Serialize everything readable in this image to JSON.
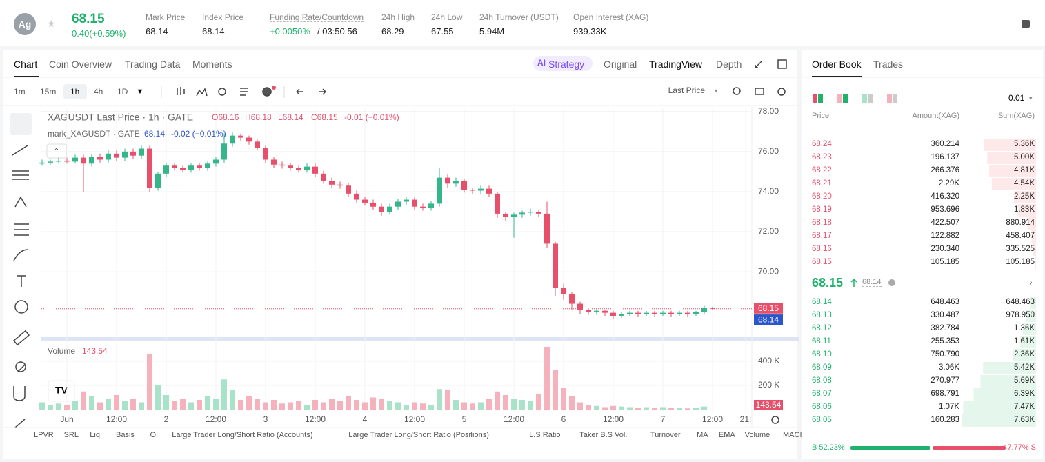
{
  "header": {
    "symbol": "Ag",
    "price": "68.15",
    "change": "0.40(+0.59%)",
    "stats": [
      {
        "label": "Mark Price",
        "value": "68.14"
      },
      {
        "label": "Index Price",
        "value": "68.14"
      },
      {
        "label": "Funding Rate/Countdown",
        "value": "+0.0050%",
        "extra": "/ 03:50:56"
      },
      {
        "label": "24h High",
        "value": "68.29"
      },
      {
        "label": "24h Low",
        "value": "67.55"
      },
      {
        "label": "24h Turnover (USDT)",
        "value": "5.94M"
      },
      {
        "label": "Open Interest (XAG)",
        "value": "939.33K"
      }
    ]
  },
  "tabs": [
    "Chart",
    "Coin Overview",
    "Trading Data",
    "Moments"
  ],
  "views": [
    "Strategy",
    "Original",
    "TradingView",
    "Depth"
  ],
  "intervals": [
    "1m",
    "15m",
    "1h",
    "4h",
    "1D"
  ],
  "price_source": "Last Price",
  "indicators": [
    "LPVR",
    "SRL",
    "Liq",
    "Basis",
    "OI",
    "Large Trader Long/Short Ratio (Accounts)",
    "Large Trader Long/Short Ratio (Positions)",
    "L.S Ratio",
    "Taker B.S Vol.",
    "Turnover",
    "MA",
    "EMA",
    "Volume",
    "MACI"
  ],
  "chart_data": {
    "type": "candlestick",
    "title": "XAGUSDT Last Price · 1h · GATE",
    "ohlc_labels": [
      "O68.16",
      "H68.18",
      "L68.14",
      "C68.15",
      "-0.01 (−0.01%)"
    ],
    "mark_title": "mark_XAGUSDT · GATE",
    "mark_labels": [
      "68.14",
      "-0.02 (−0.01%)"
    ],
    "up_color": "#35b58a",
    "down_color": "#e6506b",
    "categories": [
      null,
      null,
      null,
      "Jun",
      null,
      null,
      null,
      null,
      null,
      "12:00",
      null,
      null,
      null,
      null,
      null,
      "2",
      null,
      null,
      null,
      null,
      null,
      "12:00",
      null,
      null,
      null,
      null,
      null,
      "3",
      null,
      null,
      null,
      null,
      null,
      "12:00",
      null,
      null,
      null,
      null,
      null,
      "4",
      null,
      null,
      null,
      null,
      null,
      "12:00",
      null,
      null,
      null,
      null,
      null,
      "5",
      null,
      null,
      null,
      null,
      null,
      "12:00",
      null,
      null,
      null,
      null,
      null,
      "6",
      null,
      null,
      null,
      null,
      null,
      "12:00",
      null,
      null,
      null,
      null,
      null,
      "7",
      null,
      null,
      null,
      null,
      null,
      "12:00",
      null,
      null,
      null,
      "21:"
    ],
    "open": [
      75.4,
      75.45,
      75.5,
      75.55,
      75.5,
      75.7,
      75.4,
      75.75,
      75.6,
      75.9,
      75.7,
      76.0,
      75.8,
      76.15,
      74.2,
      74.9,
      75.3,
      75.2,
      75.1,
      75.3,
      75.2,
      75.4,
      75.6,
      76.4,
      76.8,
      76.7,
      76.5,
      76.2,
      75.6,
      75.35,
      75.3,
      75.2,
      75.1,
      75.25,
      74.9,
      74.55,
      74.35,
      74.3,
      73.9,
      73.6,
      73.45,
      73.25,
      73.0,
      73.25,
      73.5,
      73.6,
      73.25,
      73.2,
      73.4,
      74.7,
      74.4,
      74.55,
      74.1,
      74.05,
      74.15,
      73.9,
      72.9,
      72.75,
      72.85,
      72.95,
      73.0,
      72.9,
      71.4,
      69.2,
      68.9,
      68.4,
      68.1,
      68.0,
      68.05,
      67.95,
      67.8,
      67.9,
      67.95,
      67.9,
      67.95,
      67.9,
      67.95,
      67.9,
      67.95,
      67.9,
      68.0,
      68.2,
      null,
      null,
      null,
      null
    ],
    "high": [
      75.6,
      75.6,
      75.7,
      75.7,
      75.85,
      75.85,
      75.9,
      75.9,
      76.05,
      76.05,
      76.15,
      76.15,
      76.3,
      76.3,
      75.0,
      75.45,
      75.4,
      75.3,
      75.4,
      75.45,
      75.5,
      75.75,
      76.9,
      76.95,
      76.9,
      76.8,
      76.6,
      76.3,
      75.75,
      75.5,
      75.45,
      75.3,
      75.4,
      75.4,
      75.05,
      74.7,
      74.5,
      74.45,
      74.05,
      73.75,
      73.6,
      73.4,
      73.4,
      73.65,
      73.75,
      73.75,
      73.4,
      73.55,
      75.2,
      74.85,
      74.7,
      74.65,
      74.2,
      74.3,
      74.3,
      74.0,
      73.0,
      72.95,
      73.05,
      73.15,
      73.1,
      73.5,
      71.5,
      69.4,
      69.0,
      68.5,
      68.2,
      68.15,
      68.1,
      68.05,
      68.0,
      68.05,
      68.05,
      68.05,
      68.05,
      68.05,
      68.05,
      68.05,
      68.05,
      68.05,
      68.3,
      68.25,
      null,
      null,
      null,
      null
    ],
    "low": [
      75.3,
      75.35,
      75.4,
      75.4,
      75.4,
      74.0,
      75.25,
      75.45,
      75.45,
      75.55,
      75.55,
      75.65,
      75.65,
      74.0,
      74.05,
      74.75,
      75.05,
      74.95,
      74.95,
      75.05,
      75.05,
      75.25,
      75.45,
      76.25,
      76.55,
      76.35,
      76.05,
      75.45,
      75.2,
      75.15,
      75.05,
      74.95,
      74.95,
      74.75,
      74.4,
      74.2,
      74.15,
      73.75,
      73.45,
      73.3,
      73.1,
      72.8,
      72.85,
      73.1,
      73.35,
      73.1,
      73.05,
      73.05,
      73.25,
      74.2,
      74.25,
      73.95,
      73.9,
      73.9,
      73.75,
      72.7,
      72.55,
      71.7,
      72.7,
      72.8,
      72.75,
      71.2,
      68.8,
      68.6,
      68.1,
      67.9,
      67.85,
      67.85,
      67.8,
      67.65,
      67.7,
      67.8,
      67.75,
      67.8,
      67.75,
      67.8,
      67.75,
      67.8,
      67.75,
      67.8,
      67.9,
      68.1,
      null,
      null,
      null,
      null
    ],
    "close": [
      75.45,
      75.5,
      75.55,
      75.5,
      75.7,
      75.4,
      75.75,
      75.6,
      75.9,
      75.7,
      76.0,
      75.8,
      76.15,
      74.2,
      74.9,
      75.3,
      75.2,
      75.1,
      75.3,
      75.2,
      75.4,
      75.6,
      76.4,
      76.8,
      76.7,
      76.5,
      76.2,
      75.6,
      75.35,
      75.3,
      75.2,
      75.1,
      75.25,
      74.9,
      74.55,
      74.35,
      74.3,
      73.9,
      73.6,
      73.45,
      73.25,
      73.0,
      73.25,
      73.5,
      73.6,
      73.25,
      73.2,
      73.4,
      74.7,
      74.4,
      74.55,
      74.1,
      74.05,
      74.15,
      73.9,
      72.9,
      72.75,
      72.85,
      72.95,
      73.0,
      72.9,
      71.4,
      69.2,
      68.9,
      68.4,
      68.1,
      68.0,
      68.05,
      67.95,
      67.8,
      67.9,
      67.95,
      67.9,
      67.95,
      67.9,
      67.95,
      67.9,
      67.95,
      67.9,
      68.0,
      68.2,
      68.15,
      null,
      null,
      null,
      null
    ],
    "ylim": [
      66.8,
      78.2
    ],
    "yticks": [
      {
        "value": 70,
        "label": "70.00"
      },
      {
        "value": 72,
        "label": "72.00"
      },
      {
        "value": 74,
        "label": "74.00"
      },
      {
        "value": 76,
        "label": "76.00"
      },
      {
        "value": 78,
        "label": "78.00"
      }
    ],
    "last_price": {
      "value": 68.15,
      "label": "68.15"
    },
    "mark_price": {
      "value": 68.14,
      "label": "68.14"
    },
    "volume": {
      "title": "Volume",
      "values": [
        60000,
        40000,
        50000,
        35000,
        70000,
        150000,
        110000,
        60000,
        90000,
        120000,
        70000,
        90000,
        60000,
        460000,
        200000,
        120000,
        70000,
        90000,
        60000,
        80000,
        110000,
        90000,
        250000,
        160000,
        80000,
        110000,
        90000,
        60000,
        80000,
        50000,
        60000,
        70000,
        40000,
        80000,
        60000,
        90000,
        70000,
        110000,
        80000,
        60000,
        100000,
        90000,
        70000,
        60000,
        40000,
        60000,
        50000,
        40000,
        170000,
        160000,
        80000,
        60000,
        50000,
        60000,
        90000,
        150000,
        120000,
        90000,
        80000,
        70000,
        130000,
        520000,
        330000,
        180000,
        110000,
        60000,
        40000,
        30000,
        20000,
        30000,
        25000,
        20000,
        15000,
        20000,
        15000,
        20000,
        15000,
        15000,
        10000,
        15000,
        25000,
        143.54,
        null,
        null,
        null,
        null
      ],
      "ylim": [
        0,
        537000
      ],
      "yticks": [
        {
          "value": 200000,
          "label": "200 K"
        },
        {
          "value": 400000,
          "label": "400 K"
        }
      ]
    }
  },
  "order_book": {
    "tabs": [
      "Order Book",
      "Trades"
    ],
    "precision": "0.01",
    "headers": [
      "Price",
      "Amount(XAG)",
      "Sum(XAG)"
    ],
    "asks": [
      {
        "price": "68.24",
        "amount": "360.214",
        "sum": {
          "value": 5360,
          "label": "5.36K"
        }
      },
      {
        "price": "68.23",
        "amount": "196.137",
        "sum": {
          "value": 5000,
          "label": "5.00K"
        }
      },
      {
        "price": "68.22",
        "amount": "266.376",
        "sum": {
          "value": 4810,
          "label": "4.81K"
        }
      },
      {
        "price": "68.21",
        "amount": "2.29K",
        "sum": {
          "value": 4540,
          "label": "4.54K"
        }
      },
      {
        "price": "68.20",
        "amount": "416.320",
        "sum": {
          "value": 2250,
          "label": "2.25K"
        }
      },
      {
        "price": "68.19",
        "amount": "953.696",
        "sum": {
          "value": 1830,
          "label": "1.83K"
        }
      },
      {
        "price": "68.18",
        "amount": "422.507",
        "sum": 880.914
      },
      {
        "price": "68.17",
        "amount": "122.882",
        "sum": 458.407
      },
      {
        "price": "68.16",
        "amount": "230.340",
        "sum": 335.525
      },
      {
        "price": "68.15",
        "amount": "105.185",
        "sum": 105.185
      }
    ],
    "mid": {
      "price": "68.15",
      "mark": "68.14"
    },
    "bids": [
      {
        "price": "68.14",
        "amount": "648.463",
        "sum": 648.463
      },
      {
        "price": "68.13",
        "amount": "330.487",
        "sum": {
          "value": 978.95,
          "label": "978.950"
        }
      },
      {
        "price": "68.12",
        "amount": "382.784",
        "sum": {
          "value": 1360,
          "label": "1.36K"
        }
      },
      {
        "price": "68.11",
        "amount": "255.353",
        "sum": {
          "value": 1610,
          "label": "1.61K"
        }
      },
      {
        "price": "68.10",
        "amount": "750.790",
        "sum": {
          "value": 2360,
          "label": "2.36K"
        }
      },
      {
        "price": "68.09",
        "amount": "3.06K",
        "sum": {
          "value": 5420,
          "label": "5.42K"
        }
      },
      {
        "price": "68.08",
        "amount": "270.977",
        "sum": {
          "value": 5690,
          "label": "5.69K"
        }
      },
      {
        "price": "68.07",
        "amount": "698.791",
        "sum": {
          "value": 6390,
          "label": "6.39K"
        }
      },
      {
        "price": "68.06",
        "amount": "1.07K",
        "sum": {
          "value": 7470,
          "label": "7.47K"
        }
      },
      {
        "price": "68.05",
        "amount": "160.283",
        "sum": {
          "value": 7630,
          "label": "7.63K"
        }
      }
    ],
    "buy": {
      "value": 52.23,
      "label": "B 52.23%"
    },
    "sell": {
      "value": 47.77,
      "label": "47.77% S"
    }
  }
}
